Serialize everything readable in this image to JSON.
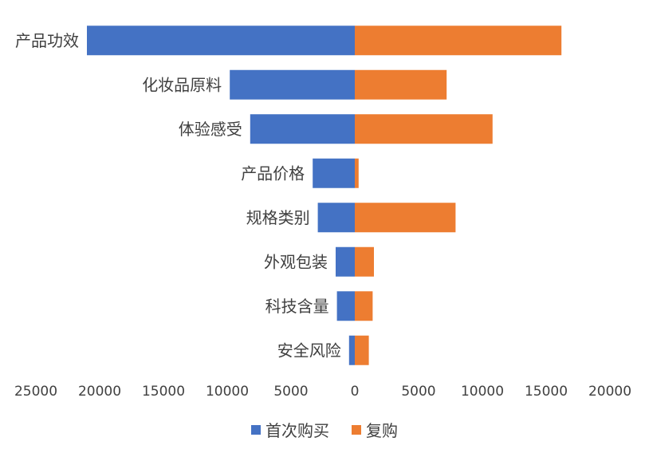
{
  "chart_data": {
    "type": "bar",
    "orientation": "horizontal",
    "layout": "diverging",
    "categories": [
      "产品功效",
      "化妆品原料",
      "体验感受",
      "产品价格",
      "规格类别",
      "外观包装",
      "科技含量",
      "安全风险"
    ],
    "series": [
      {
        "name": "首次购买",
        "color": "#4472C4",
        "direction": "left",
        "values": [
          21000,
          9800,
          8200,
          3300,
          2900,
          1500,
          1400,
          450
        ]
      },
      {
        "name": "复购",
        "color": "#ED7D31",
        "direction": "right",
        "values": [
          16200,
          7200,
          10800,
          300,
          7900,
          1500,
          1400,
          1100
        ]
      }
    ],
    "xlim": [
      -25000,
      20000
    ],
    "xticks": [
      {
        "value": -25000,
        "label": "25000"
      },
      {
        "value": -20000,
        "label": "20000"
      },
      {
        "value": -15000,
        "label": "15000"
      },
      {
        "value": -10000,
        "label": "10000"
      },
      {
        "value": -5000,
        "label": "5000"
      },
      {
        "value": 0,
        "label": "0"
      },
      {
        "value": 5000,
        "label": "5000"
      },
      {
        "value": 10000,
        "label": "10000"
      },
      {
        "value": 15000,
        "label": "15000"
      },
      {
        "value": 20000,
        "label": "20000"
      }
    ],
    "grid": false,
    "legend": "bottom"
  }
}
